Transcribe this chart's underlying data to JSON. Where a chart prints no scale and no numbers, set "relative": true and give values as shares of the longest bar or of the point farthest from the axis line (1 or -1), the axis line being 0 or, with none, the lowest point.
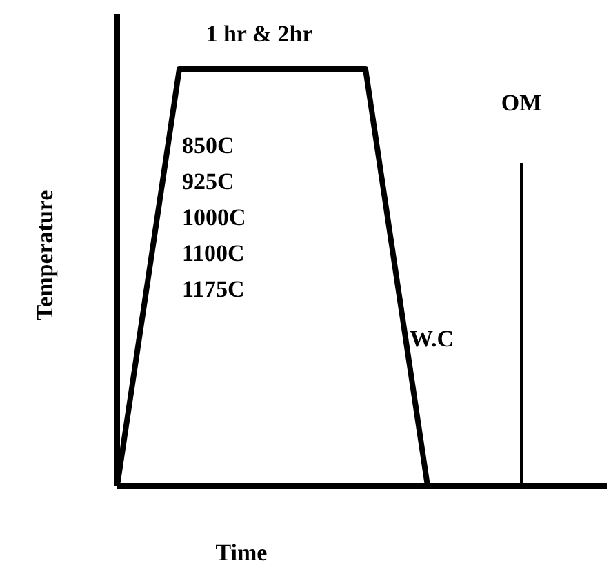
{
  "chart_data": {
    "type": "line",
    "xlabel": "Time",
    "ylabel": "Temperature",
    "relative": true,
    "marker": "none",
    "line_style": "solid",
    "categories": [
      null,
      null,
      null,
      null,
      null,
      null
    ],
    "series": [
      {
        "color": "#000000",
        "values": [
          0,
          1,
          1,
          1,
          1,
          0
        ]
      }
    ],
    "annotations": [
      "1 hr & 2hr",
      "850C",
      "925C",
      "1000C",
      "1100C",
      "1175C",
      "W.C",
      "OM"
    ]
  }
}
